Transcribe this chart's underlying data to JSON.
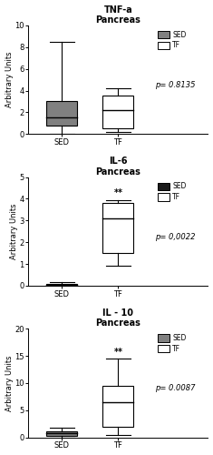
{
  "panels": [
    {
      "title": "TNF-a\nPancreas",
      "ylabel": "Arbitrary Units",
      "ylim": [
        0,
        10
      ],
      "yticks": [
        0,
        2,
        4,
        6,
        8,
        10
      ],
      "pvalue": "p= 0.8135",
      "significance": "",
      "SED": {
        "q1": 0.8,
        "median": 1.5,
        "q3": 3.0,
        "whisker_low": 0.0,
        "whisker_high": 8.5,
        "color": "#808080"
      },
      "TF": {
        "q1": 0.5,
        "median": 2.2,
        "q3": 3.5,
        "whisker_low": 0.2,
        "whisker_high": 4.2,
        "color": "#ffffff"
      },
      "legend_sed_color": "#808080",
      "legend_tf_color": "#ffffff"
    },
    {
      "title": "IL-6\nPancreas",
      "ylabel": "Arbitrary Units",
      "ylim": [
        0,
        5
      ],
      "yticks": [
        0,
        1,
        2,
        3,
        4,
        5
      ],
      "pvalue": "p= 0,0022",
      "significance": "**",
      "SED": {
        "q1": 0.0,
        "median": 0.05,
        "q3": 0.1,
        "whisker_low": 0.0,
        "whisker_high": 0.15,
        "color": "#1a1a1a"
      },
      "TF": {
        "q1": 1.5,
        "median": 3.1,
        "q3": 3.8,
        "whisker_low": 0.9,
        "whisker_high": 3.95,
        "color": "#ffffff"
      },
      "legend_sed_color": "#1a1a1a",
      "legend_tf_color": "#ffffff"
    },
    {
      "title": "IL - 10\nPancreas",
      "ylabel": "Arbitrary Units",
      "ylim": [
        0,
        20
      ],
      "yticks": [
        0,
        5,
        10,
        15,
        20
      ],
      "pvalue": "p= 0.0087",
      "significance": "**",
      "SED": {
        "q1": 0.3,
        "median": 0.8,
        "q3": 1.1,
        "whisker_low": 0.0,
        "whisker_high": 1.7,
        "color": "#808080"
      },
      "TF": {
        "q1": 2.0,
        "median": 6.5,
        "q3": 9.5,
        "whisker_low": 0.5,
        "whisker_high": 14.5,
        "color": "#ffffff"
      },
      "legend_sed_color": "#808080",
      "legend_tf_color": "#ffffff"
    }
  ],
  "box_width": 0.55,
  "background_color": "#ffffff"
}
